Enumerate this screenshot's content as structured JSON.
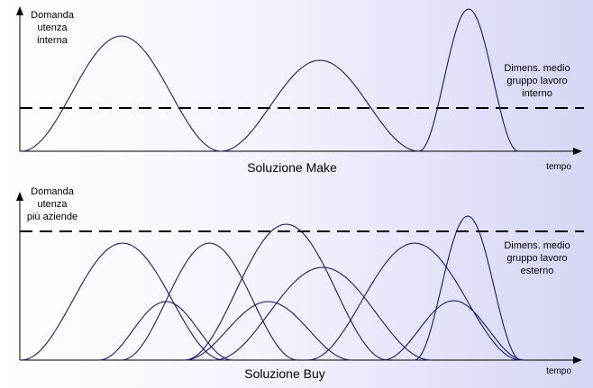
{
  "panels": [
    {
      "id": "make",
      "ylabel": [
        "Domanda",
        "utenza",
        "interna"
      ],
      "threshold_label": [
        "Dimens. medio",
        "gruppo lavoro",
        "interno"
      ],
      "caption": "Soluzione Make",
      "xlabel": "tempo"
    },
    {
      "id": "buy",
      "ylabel": [
        "Domanda",
        "utenza",
        "più aziende"
      ],
      "threshold_label": [
        "Dimens. medio",
        "gruppo lavoro",
        "esterno"
      ],
      "caption": "Soluzione Buy",
      "xlabel": "tempo"
    }
  ]
}
